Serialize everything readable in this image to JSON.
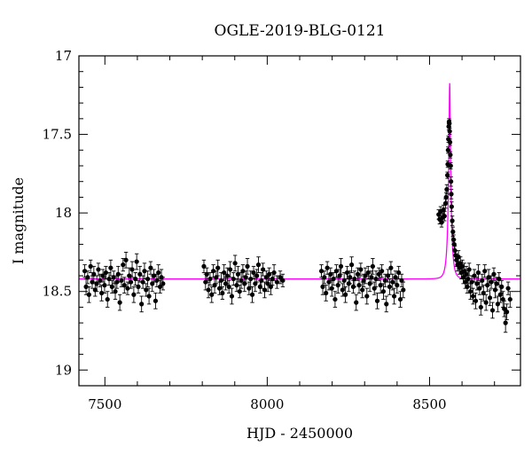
{
  "chart_data": {
    "type": "scatter",
    "title": "OGLE-2019-BLG-0121",
    "xlabel": "HJD - 2450000",
    "ylabel": "I magnitude",
    "xlim": [
      7420,
      8780
    ],
    "ylim": [
      19.1,
      17.0
    ],
    "y_inverted": true,
    "x_ticks": [
      7500,
      8000,
      8500
    ],
    "x_tick_labels": [
      "7500",
      "8000",
      "8500"
    ],
    "y_ticks": [
      17,
      17.5,
      18,
      18.5,
      19
    ],
    "y_tick_labels": [
      "17",
      "17.5",
      "18",
      "18.5",
      "19"
    ],
    "grid": false,
    "marker_color": "#000000",
    "model_color": "#ff00ff",
    "model": {
      "baseline": 18.42,
      "t0": 8562,
      "tE": 10.5,
      "u0": 0.175,
      "fs": 0.45
    },
    "data_points": [
      [
        7438,
        18.37,
        0.04
      ],
      [
        7442,
        18.47,
        0.05
      ],
      [
        7447,
        18.41,
        0.04
      ],
      [
        7451,
        18.52,
        0.05
      ],
      [
        7456,
        18.34,
        0.04
      ],
      [
        7461,
        18.44,
        0.04
      ],
      [
        7466,
        18.39,
        0.05
      ],
      [
        7470,
        18.49,
        0.04
      ],
      [
        7475,
        18.45,
        0.05
      ],
      [
        7480,
        18.36,
        0.04
      ],
      [
        7485,
        18.43,
        0.04
      ],
      [
        7490,
        18.51,
        0.05
      ],
      [
        7494,
        18.4,
        0.04
      ],
      [
        7499,
        18.46,
        0.05
      ],
      [
        7503,
        18.38,
        0.04
      ],
      [
        7508,
        18.55,
        0.05
      ],
      [
        7513,
        18.42,
        0.04
      ],
      [
        7518,
        18.35,
        0.05
      ],
      [
        7522,
        18.47,
        0.04
      ],
      [
        7527,
        18.41,
        0.04
      ],
      [
        7532,
        18.5,
        0.05
      ],
      [
        7537,
        18.44,
        0.04
      ],
      [
        7541,
        18.39,
        0.05
      ],
      [
        7546,
        18.57,
        0.05
      ],
      [
        7551,
        18.43,
        0.04
      ],
      [
        7556,
        18.33,
        0.04
      ],
      [
        7560,
        18.46,
        0.05
      ],
      [
        7565,
        18.3,
        0.05
      ],
      [
        7570,
        18.48,
        0.04
      ],
      [
        7575,
        18.4,
        0.05
      ],
      [
        7580,
        18.44,
        0.04
      ],
      [
        7584,
        18.36,
        0.05
      ],
      [
        7589,
        18.52,
        0.05
      ],
      [
        7594,
        18.42,
        0.04
      ],
      [
        7598,
        18.31,
        0.05
      ],
      [
        7603,
        18.47,
        0.04
      ],
      [
        7608,
        18.39,
        0.05
      ],
      [
        7613,
        18.58,
        0.05
      ],
      [
        7617,
        18.44,
        0.04
      ],
      [
        7622,
        18.37,
        0.05
      ],
      [
        7627,
        18.49,
        0.04
      ],
      [
        7632,
        18.42,
        0.05
      ],
      [
        7636,
        18.53,
        0.05
      ],
      [
        7641,
        18.35,
        0.04
      ],
      [
        7646,
        18.45,
        0.05
      ],
      [
        7651,
        18.4,
        0.04
      ],
      [
        7656,
        18.56,
        0.05
      ],
      [
        7660,
        18.43,
        0.04
      ],
      [
        7665,
        18.38,
        0.05
      ],
      [
        7670,
        18.47,
        0.04
      ],
      [
        7674,
        18.41,
        0.05
      ],
      [
        7679,
        18.45,
        0.04
      ],
      [
        7805,
        18.34,
        0.04
      ],
      [
        7810,
        18.44,
        0.05
      ],
      [
        7814,
        18.39,
        0.04
      ],
      [
        7819,
        18.49,
        0.05
      ],
      [
        7824,
        18.42,
        0.04
      ],
      [
        7829,
        18.52,
        0.05
      ],
      [
        7834,
        18.37,
        0.04
      ],
      [
        7838,
        18.46,
        0.05
      ],
      [
        7843,
        18.41,
        0.04
      ],
      [
        7848,
        18.35,
        0.05
      ],
      [
        7853,
        18.48,
        0.04
      ],
      [
        7858,
        18.43,
        0.05
      ],
      [
        7862,
        18.51,
        0.04
      ],
      [
        7867,
        18.38,
        0.05
      ],
      [
        7872,
        18.45,
        0.04
      ],
      [
        7877,
        18.4,
        0.05
      ],
      [
        7882,
        18.47,
        0.04
      ],
      [
        7886,
        18.36,
        0.05
      ],
      [
        7891,
        18.53,
        0.05
      ],
      [
        7896,
        18.42,
        0.04
      ],
      [
        7901,
        18.32,
        0.05
      ],
      [
        7906,
        18.46,
        0.04
      ],
      [
        7910,
        18.39,
        0.05
      ],
      [
        7915,
        18.5,
        0.04
      ],
      [
        7920,
        18.43,
        0.05
      ],
      [
        7925,
        18.37,
        0.04
      ],
      [
        7930,
        18.45,
        0.05
      ],
      [
        7934,
        18.41,
        0.04
      ],
      [
        7939,
        18.34,
        0.05
      ],
      [
        7944,
        18.48,
        0.04
      ],
      [
        7949,
        18.42,
        0.05
      ],
      [
        7954,
        18.52,
        0.05
      ],
      [
        7958,
        18.38,
        0.04
      ],
      [
        7963,
        18.45,
        0.05
      ],
      [
        7968,
        18.4,
        0.04
      ],
      [
        7973,
        18.33,
        0.05
      ],
      [
        7978,
        18.47,
        0.04
      ],
      [
        7982,
        18.43,
        0.05
      ],
      [
        7987,
        18.36,
        0.04
      ],
      [
        7992,
        18.49,
        0.05
      ],
      [
        7997,
        18.41,
        0.04
      ],
      [
        8002,
        18.45,
        0.05
      ],
      [
        8006,
        18.39,
        0.04
      ],
      [
        8011,
        18.47,
        0.05
      ],
      [
        8016,
        18.42,
        0.04
      ],
      [
        8021,
        18.38,
        0.05
      ],
      [
        8030,
        18.44,
        0.04
      ],
      [
        8040,
        18.41,
        0.04
      ],
      [
        8048,
        18.43,
        0.04
      ],
      [
        8167,
        18.37,
        0.04
      ],
      [
        8171,
        18.47,
        0.05
      ],
      [
        8176,
        18.41,
        0.04
      ],
      [
        8181,
        18.51,
        0.05
      ],
      [
        8185,
        18.35,
        0.04
      ],
      [
        8190,
        18.44,
        0.05
      ],
      [
        8195,
        18.39,
        0.04
      ],
      [
        8199,
        18.48,
        0.05
      ],
      [
        8204,
        18.42,
        0.04
      ],
      [
        8209,
        18.55,
        0.05
      ],
      [
        8213,
        18.37,
        0.04
      ],
      [
        8218,
        18.46,
        0.05
      ],
      [
        8223,
        18.4,
        0.04
      ],
      [
        8227,
        18.34,
        0.05
      ],
      [
        8232,
        18.49,
        0.04
      ],
      [
        8237,
        18.43,
        0.05
      ],
      [
        8241,
        18.52,
        0.05
      ],
      [
        8246,
        18.38,
        0.04
      ],
      [
        8251,
        18.45,
        0.05
      ],
      [
        8255,
        18.41,
        0.04
      ],
      [
        8260,
        18.33,
        0.05
      ],
      [
        8265,
        18.47,
        0.04
      ],
      [
        8269,
        18.42,
        0.05
      ],
      [
        8274,
        18.57,
        0.05
      ],
      [
        8279,
        18.39,
        0.04
      ],
      [
        8283,
        18.46,
        0.05
      ],
      [
        8288,
        18.36,
        0.04
      ],
      [
        8293,
        18.49,
        0.05
      ],
      [
        8297,
        18.43,
        0.04
      ],
      [
        8302,
        18.4,
        0.05
      ],
      [
        8307,
        18.53,
        0.05
      ],
      [
        8311,
        18.38,
        0.04
      ],
      [
        8316,
        18.45,
        0.05
      ],
      [
        8321,
        18.41,
        0.04
      ],
      [
        8325,
        18.34,
        0.05
      ],
      [
        8330,
        18.48,
        0.04
      ],
      [
        8335,
        18.42,
        0.05
      ],
      [
        8339,
        18.56,
        0.05
      ],
      [
        8344,
        18.39,
        0.04
      ],
      [
        8349,
        18.46,
        0.05
      ],
      [
        8353,
        18.37,
        0.04
      ],
      [
        8358,
        18.5,
        0.05
      ],
      [
        8363,
        18.43,
        0.04
      ],
      [
        8367,
        18.58,
        0.05
      ],
      [
        8372,
        18.4,
        0.04
      ],
      [
        8377,
        18.47,
        0.05
      ],
      [
        8381,
        18.35,
        0.04
      ],
      [
        8386,
        18.44,
        0.05
      ],
      [
        8391,
        18.53,
        0.05
      ],
      [
        8395,
        18.41,
        0.04
      ],
      [
        8400,
        18.46,
        0.05
      ],
      [
        8405,
        18.38,
        0.04
      ],
      [
        8410,
        18.55,
        0.05
      ],
      [
        8414,
        18.43,
        0.04
      ],
      [
        8419,
        18.49,
        0.05
      ],
      [
        8528,
        18.01,
        0.03
      ],
      [
        8531,
        18.04,
        0.03
      ],
      [
        8534,
        17.99,
        0.03
      ],
      [
        8537,
        18.06,
        0.03
      ],
      [
        8540,
        18.03,
        0.03
      ],
      [
        8543,
        17.98,
        0.03
      ],
      [
        8546,
        18.02,
        0.03
      ],
      [
        8549,
        17.94,
        0.03
      ],
      [
        8551,
        17.9,
        0.03
      ],
      [
        8553,
        17.85,
        0.03
      ],
      [
        8555,
        17.76,
        0.02
      ],
      [
        8556,
        17.69,
        0.02
      ],
      [
        8557,
        17.6,
        0.02
      ],
      [
        8558,
        17.53,
        0.02
      ],
      [
        8559,
        17.45,
        0.02
      ],
      [
        8560,
        17.42,
        0.02
      ],
      [
        8561,
        17.43,
        0.02
      ],
      [
        8562,
        17.48,
        0.02
      ],
      [
        8563,
        17.55,
        0.02
      ],
      [
        8564,
        17.63,
        0.02
      ],
      [
        8565,
        17.7,
        0.02
      ],
      [
        8566,
        17.8,
        0.03
      ],
      [
        8567,
        17.88,
        0.03
      ],
      [
        8568,
        17.96,
        0.03
      ],
      [
        8570,
        18.05,
        0.03
      ],
      [
        8572,
        18.12,
        0.03
      ],
      [
        8574,
        18.17,
        0.03
      ],
      [
        8576,
        18.2,
        0.03
      ],
      [
        8578,
        18.24,
        0.03
      ],
      [
        8580,
        18.27,
        0.03
      ],
      [
        8583,
        18.3,
        0.04
      ],
      [
        8586,
        18.33,
        0.04
      ],
      [
        8589,
        18.28,
        0.04
      ],
      [
        8592,
        18.35,
        0.04
      ],
      [
        8595,
        18.32,
        0.04
      ],
      [
        8598,
        18.38,
        0.04
      ],
      [
        8601,
        18.34,
        0.04
      ],
      [
        8604,
        18.41,
        0.04
      ],
      [
        8607,
        18.37,
        0.05
      ],
      [
        8610,
        18.44,
        0.04
      ],
      [
        8613,
        18.39,
        0.05
      ],
      [
        8616,
        18.47,
        0.04
      ],
      [
        8619,
        18.42,
        0.05
      ],
      [
        8622,
        18.36,
        0.04
      ],
      [
        8626,
        18.5,
        0.05
      ],
      [
        8630,
        18.44,
        0.04
      ],
      [
        8634,
        18.53,
        0.05
      ],
      [
        8638,
        18.4,
        0.04
      ],
      [
        8642,
        18.56,
        0.05
      ],
      [
        8646,
        18.45,
        0.04
      ],
      [
        8650,
        18.38,
        0.05
      ],
      [
        8654,
        18.48,
        0.04
      ],
      [
        8658,
        18.6,
        0.05
      ],
      [
        8662,
        18.43,
        0.04
      ],
      [
        8666,
        18.51,
        0.05
      ],
      [
        8670,
        18.37,
        0.04
      ],
      [
        8674,
        18.57,
        0.05
      ],
      [
        8678,
        18.46,
        0.04
      ],
      [
        8682,
        18.41,
        0.05
      ],
      [
        8686,
        18.54,
        0.05
      ],
      [
        8690,
        18.44,
        0.04
      ],
      [
        8694,
        18.62,
        0.05
      ],
      [
        8698,
        18.39,
        0.04
      ],
      [
        8702,
        18.49,
        0.05
      ],
      [
        8706,
        18.45,
        0.04
      ],
      [
        8710,
        18.58,
        0.05
      ],
      [
        8714,
        18.42,
        0.04
      ],
      [
        8718,
        18.52,
        0.05
      ],
      [
        8722,
        18.47,
        0.04
      ],
      [
        8726,
        18.55,
        0.05
      ],
      [
        8730,
        18.61,
        0.05
      ],
      [
        8734,
        18.7,
        0.06
      ],
      [
        8738,
        18.63,
        0.05
      ],
      [
        8742,
        18.48,
        0.04
      ],
      [
        8748,
        18.55,
        0.05
      ]
    ]
  }
}
